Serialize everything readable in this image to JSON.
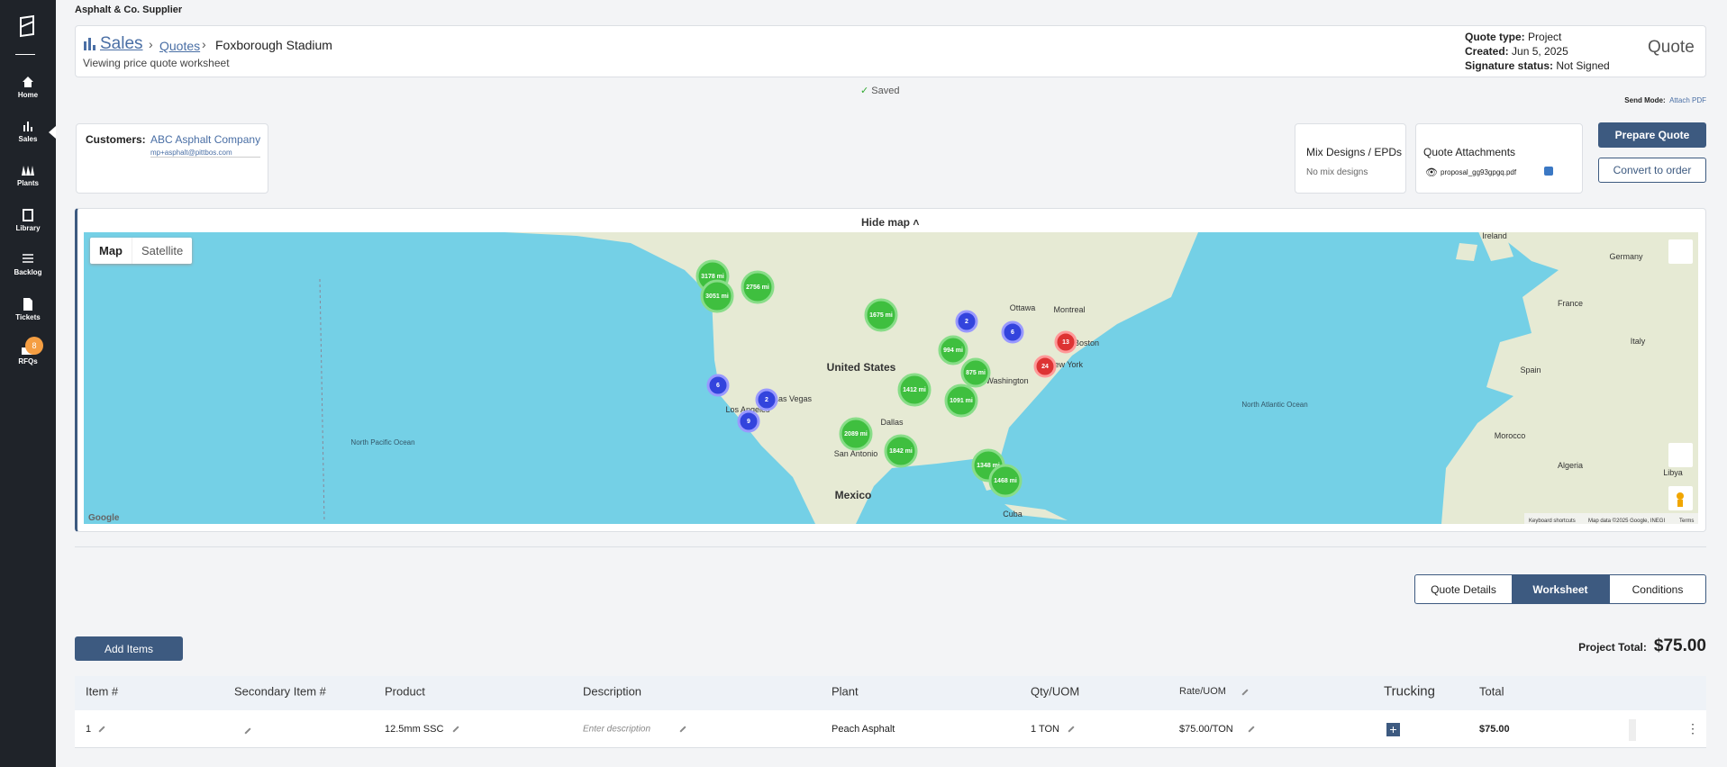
{
  "sidebar": {
    "items": [
      "Home",
      "Sales",
      "Plants",
      "Library",
      "Backlog",
      "Tickets",
      "RFQs"
    ],
    "rfq_badge": "8"
  },
  "company": "Asphalt & Co. Supplier",
  "header": {
    "breadcrumb": [
      "Sales",
      "Quotes",
      "Foxborough Stadium"
    ],
    "subtitle": "Viewing price quote worksheet",
    "quote_type_label": "Quote type:",
    "quote_type": "Project",
    "created_label": "Created:",
    "created": "Jun 5, 2025",
    "signature_label": "Signature status:",
    "signature": "Not Signed",
    "doc": "Quote"
  },
  "saved": "Saved",
  "send_mode": {
    "label": "Send Mode:",
    "value": "Attach PDF"
  },
  "customers": {
    "label": "Customers:",
    "name": "ABC Asphalt Company",
    "email": "mp+asphalt@pittbos.com"
  },
  "mix_designs": {
    "title": "Mix Designs / EPDs",
    "empty": "No mix designs"
  },
  "attachments": {
    "title": "Quote Attachments",
    "file": "proposal_gg93gpgq.pdf"
  },
  "buttons": {
    "prepare": "Prepare Quote",
    "convert": "Convert to order",
    "add_items": "Add Items"
  },
  "map": {
    "hide": "Hide map",
    "toggle": [
      "Map",
      "Satellite"
    ],
    "clusters": [
      "3178 mi",
      "3051 mi",
      "2756 mi",
      "1675 mi",
      "2",
      "6",
      "13",
      "994 mi",
      "24",
      "875 mi",
      "6",
      "1412 mi",
      "2",
      "1091 mi",
      "9",
      "2089 mi",
      "1842 mi",
      "1348 mi",
      "1468 mi"
    ],
    "places": [
      "United States",
      "Mexico",
      "North Pacific Ocean",
      "North Atlantic Ocean",
      "Spain",
      "France",
      "Algeria",
      "Libya",
      "Morocco",
      "Germany",
      "Ireland",
      "Italy",
      "Cuba",
      "Dallas",
      "San Antonio",
      "Los Angeles",
      "Las Vegas",
      "New York",
      "Boston",
      "Washington",
      "Ottawa",
      "Montreal"
    ],
    "footer": [
      "Keyboard shortcuts",
      "Map data ©2025 Google, INEGI",
      "Terms"
    ],
    "logo": "Google"
  },
  "tabs": [
    "Quote Details",
    "Worksheet",
    "Conditions"
  ],
  "project_total": {
    "label": "Project Total:",
    "value": "$75.00"
  },
  "table": {
    "headers": [
      "Item #",
      "Secondary Item #",
      "Product",
      "Description",
      "Plant",
      "Qty/UOM",
      "Rate/UOM",
      "Trucking",
      "Total"
    ],
    "rows": [
      [
        "1",
        "",
        "12.5mm SSC",
        "Enter description",
        "Peach Asphalt",
        "1 TON",
        "$75.00/TON",
        "",
        "$75.00"
      ]
    ]
  }
}
